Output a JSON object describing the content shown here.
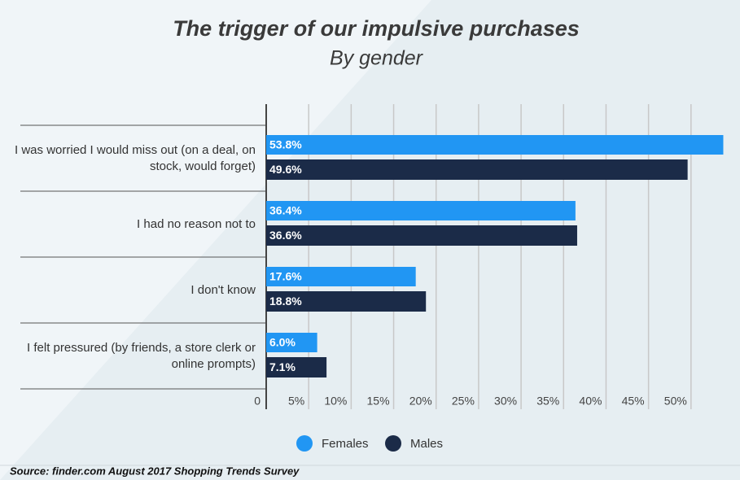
{
  "chart_data": {
    "type": "barh",
    "title": "The trigger of our impulsive purchases",
    "subtitle": "By gender",
    "categories": [
      "I was worried I would miss out (on a deal, on stock, would forget)",
      "I had no reason not to",
      "I don't know",
      "I felt pressured (by friends, a store clerk or online prompts)"
    ],
    "series": [
      {
        "name": "Females",
        "color": "#2196f3",
        "values": [
          53.8,
          36.4,
          17.6,
          6.0
        ],
        "value_labels": [
          "53.8%",
          "36.4%",
          "17.6%",
          "6.0%"
        ]
      },
      {
        "name": "Males",
        "color": "#1b2b48",
        "values": [
          49.6,
          36.6,
          18.8,
          7.1
        ],
        "value_labels": [
          "49.6%",
          "36.6%",
          "18.8%",
          "7.1%"
        ]
      }
    ],
    "xlim": [
      0,
      55
    ],
    "xticks": [
      0,
      {
        "value": 5,
        "label": "5%"
      },
      {
        "value": 10,
        "label": "10%"
      },
      {
        "value": 15,
        "label": "15%"
      },
      {
        "value": 20,
        "label": "20%"
      },
      {
        "value": 25,
        "label": "25%"
      },
      {
        "value": 30,
        "label": "30%"
      },
      {
        "value": 35,
        "label": "35%"
      },
      {
        "value": 40,
        "label": "40%"
      },
      {
        "value": 45,
        "label": "45%"
      },
      {
        "value": 50,
        "label": "50%"
      }
    ],
    "grid": true,
    "legend": "bottom",
    "source": "Source: finder.com August 2017 Shopping Trends Survey"
  }
}
